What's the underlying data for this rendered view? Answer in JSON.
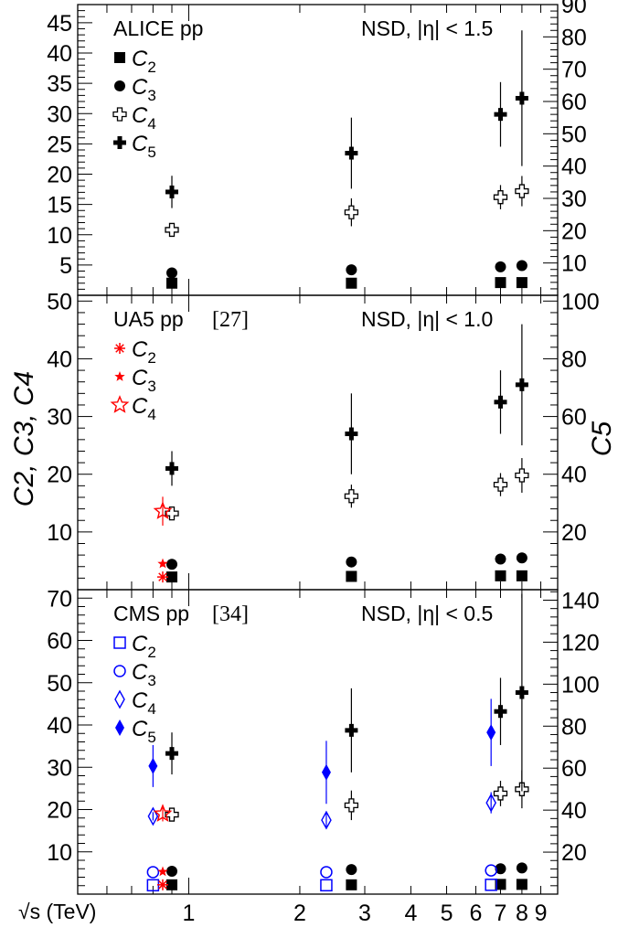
{
  "colors": {
    "alice": "#000000",
    "ua5": "#ff0000",
    "cms": "#0000ff"
  },
  "chart_data": {
    "type": "scatter",
    "xlabel": "√s (TeV)",
    "xscale": "log",
    "xlim": [
      0.5,
      10
    ],
    "xticks": [
      {
        "v": 1,
        "label": "1"
      },
      {
        "v": 2,
        "label": "2"
      },
      {
        "v": 3,
        "label": "3"
      },
      {
        "v": 4,
        "label": "4"
      },
      {
        "v": 5,
        "label": "5"
      },
      {
        "v": 6,
        "label": "6"
      },
      {
        "v": 7,
        "label": "7"
      },
      {
        "v": 8,
        "label": "8"
      },
      {
        "v": 9,
        "label": "9"
      }
    ],
    "left_ylabel": "C2, C3, C4",
    "right_ylabel": "C5",
    "panels": [
      {
        "experiment": "ALICE pp",
        "reference": "",
        "selection": "NSD, |η| < 1.5",
        "ylim_left": [
          0,
          48
        ],
        "ylim_right": [
          0,
          90
        ],
        "left_ticks": [
          5,
          10,
          15,
          20,
          25,
          30,
          35,
          40,
          45
        ],
        "right_ticks": [
          10,
          20,
          30,
          40,
          50,
          60,
          70,
          80,
          90
        ],
        "legend": [
          {
            "marker": "square-filled",
            "label": "C",
            "sub": "2"
          },
          {
            "marker": "circle-filled",
            "label": "C",
            "sub": "3"
          },
          {
            "marker": "cross-open",
            "label": "C",
            "sub": "4"
          },
          {
            "marker": "cross-filled",
            "label": "C",
            "sub": "5"
          }
        ],
        "series": [
          {
            "name": "C2",
            "marker": "square-filled",
            "color": "#000000",
            "axis": "left",
            "points": [
              {
                "x": 0.9,
                "y": 2.0,
                "err": 0
              },
              {
                "x": 2.76,
                "y": 2.0,
                "err": 0
              },
              {
                "x": 7,
                "y": 2.1,
                "err": 0
              },
              {
                "x": 8,
                "y": 2.1,
                "err": 0
              }
            ]
          },
          {
            "name": "C3",
            "marker": "circle-filled",
            "color": "#000000",
            "axis": "left",
            "points": [
              {
                "x": 0.9,
                "y": 3.7,
                "err": 0
              },
              {
                "x": 2.76,
                "y": 4.2,
                "err": 0
              },
              {
                "x": 7,
                "y": 4.7,
                "err": 0
              },
              {
                "x": 8,
                "y": 4.9,
                "err": 0
              }
            ]
          },
          {
            "name": "C4",
            "marker": "cross-open",
            "color": "#000000",
            "axis": "left",
            "points": [
              {
                "x": 0.9,
                "y": 10.8,
                "err": 1.0
              },
              {
                "x": 2.76,
                "y": 13.7,
                "err": 2.3
              },
              {
                "x": 7,
                "y": 16.2,
                "err": 2.0
              },
              {
                "x": 8,
                "y": 17.2,
                "err": 2.5
              }
            ]
          },
          {
            "name": "C5",
            "marker": "cross-filled",
            "color": "#000000",
            "axis": "right",
            "points": [
              {
                "x": 0.9,
                "y": 32,
                "err": 5
              },
              {
                "x": 2.76,
                "y": 44,
                "err": 11
              },
              {
                "x": 7,
                "y": 56,
                "err": 10
              },
              {
                "x": 8,
                "y": 61,
                "err": 21
              }
            ]
          }
        ]
      },
      {
        "experiment": "UA5 pp",
        "reference": "[27]",
        "selection": "NSD, |η| < 1.0",
        "ylim_left": [
          0,
          51
        ],
        "ylim_right": [
          0,
          102
        ],
        "left_ticks": [
          10,
          20,
          30,
          40,
          50
        ],
        "right_ticks": [
          20,
          40,
          60,
          80,
          100
        ],
        "legend": [
          {
            "marker": "asterisk",
            "label": "C",
            "sub": "2"
          },
          {
            "marker": "star-small",
            "label": "C",
            "sub": "3"
          },
          {
            "marker": "star-open",
            "label": "C",
            "sub": "4"
          }
        ],
        "series": [
          {
            "name": "C2",
            "marker": "square-filled",
            "color": "#000000",
            "axis": "left",
            "points": [
              {
                "x": 0.9,
                "y": 2.2,
                "err": 0
              },
              {
                "x": 2.76,
                "y": 2.3,
                "err": 0
              },
              {
                "x": 7,
                "y": 2.4,
                "err": 0
              },
              {
                "x": 8,
                "y": 2.4,
                "err": 0
              }
            ]
          },
          {
            "name": "C3",
            "marker": "circle-filled",
            "color": "#000000",
            "axis": "left",
            "points": [
              {
                "x": 0.9,
                "y": 4.4,
                "err": 0
              },
              {
                "x": 2.76,
                "y": 4.8,
                "err": 0
              },
              {
                "x": 7,
                "y": 5.3,
                "err": 0
              },
              {
                "x": 8,
                "y": 5.5,
                "err": 0
              }
            ]
          },
          {
            "name": "C4",
            "marker": "cross-open",
            "color": "#000000",
            "axis": "left",
            "points": [
              {
                "x": 0.9,
                "y": 13.2,
                "err": 0.9
              },
              {
                "x": 2.76,
                "y": 16.2,
                "err": 2.0
              },
              {
                "x": 7,
                "y": 18.2,
                "err": 2.0
              },
              {
                "x": 8,
                "y": 19.8,
                "err": 3.0
              }
            ]
          },
          {
            "name": "C5",
            "marker": "cross-filled",
            "color": "#000000",
            "axis": "right",
            "points": [
              {
                "x": 0.9,
                "y": 42,
                "err": 6
              },
              {
                "x": 2.76,
                "y": 54,
                "err": 14
              },
              {
                "x": 7,
                "y": 65,
                "err": 11
              },
              {
                "x": 8,
                "y": 71,
                "err": 21
              }
            ]
          },
          {
            "name": "C2 (UA5)",
            "marker": "asterisk",
            "color": "#ff0000",
            "axis": "left",
            "points": [
              {
                "x": 0.85,
                "y": 2.2,
                "err": 0.3
              }
            ]
          },
          {
            "name": "C3 (UA5)",
            "marker": "star-small",
            "color": "#ff0000",
            "axis": "left",
            "points": [
              {
                "x": 0.85,
                "y": 4.5,
                "err": 0.5
              }
            ]
          },
          {
            "name": "C4 (UA5)",
            "marker": "star-open",
            "color": "#ff0000",
            "axis": "left",
            "points": [
              {
                "x": 0.85,
                "y": 13.6,
                "err": 2.5
              }
            ]
          }
        ]
      },
      {
        "experiment": "CMS pp",
        "reference": "[34]",
        "selection": "NSD, |η| < 0.5",
        "ylim_left": [
          0,
          72
        ],
        "ylim_right": [
          0,
          145
        ],
        "left_ticks": [
          10,
          20,
          30,
          40,
          50,
          60,
          70
        ],
        "right_ticks": [
          20,
          40,
          60,
          80,
          100,
          120,
          140
        ],
        "legend": [
          {
            "marker": "square-open",
            "label": "C",
            "sub": "2"
          },
          {
            "marker": "circle-open",
            "label": "C",
            "sub": "3"
          },
          {
            "marker": "diamond-open",
            "label": "C",
            "sub": "4"
          },
          {
            "marker": "diamond-filled",
            "label": "C",
            "sub": "5"
          }
        ],
        "series": [
          {
            "name": "C2",
            "marker": "square-filled",
            "color": "#000000",
            "axis": "left",
            "points": [
              {
                "x": 0.9,
                "y": 2.2,
                "err": 0
              },
              {
                "x": 2.76,
                "y": 2.2,
                "err": 0
              },
              {
                "x": 7,
                "y": 2.3,
                "err": 0
              },
              {
                "x": 8,
                "y": 2.3,
                "err": 0
              }
            ]
          },
          {
            "name": "C3",
            "marker": "circle-filled",
            "color": "#000000",
            "axis": "left",
            "points": [
              {
                "x": 0.9,
                "y": 5.4,
                "err": 0
              },
              {
                "x": 2.76,
                "y": 5.8,
                "err": 0
              },
              {
                "x": 7,
                "y": 6.0,
                "err": 0
              },
              {
                "x": 8,
                "y": 6.2,
                "err": 0
              }
            ]
          },
          {
            "name": "C4",
            "marker": "cross-open",
            "color": "#000000",
            "axis": "left",
            "points": [
              {
                "x": 0.9,
                "y": 18.8,
                "err": 1.3
              },
              {
                "x": 2.76,
                "y": 21.0,
                "err": 3.5
              },
              {
                "x": 7,
                "y": 23.8,
                "err": 3.0
              },
              {
                "x": 8,
                "y": 24.8,
                "err": 4.5
              }
            ]
          },
          {
            "name": "C5",
            "marker": "cross-filled",
            "color": "#000000",
            "axis": "right",
            "points": [
              {
                "x": 0.9,
                "y": 67,
                "err": 10
              },
              {
                "x": 2.76,
                "y": 78,
                "err": 20
              },
              {
                "x": 7,
                "y": 87,
                "err": 16
              },
              {
                "x": 8,
                "y": 96,
                "err": 47
              }
            ]
          },
          {
            "name": "C2 (CMS)",
            "marker": "square-open",
            "color": "#0000ff",
            "axis": "left",
            "points": [
              {
                "x": 0.8,
                "y": 2.1,
                "err": 0
              },
              {
                "x": 2.36,
                "y": 2.1,
                "err": 0
              },
              {
                "x": 6.6,
                "y": 2.2,
                "err": 0
              }
            ]
          },
          {
            "name": "C3 (CMS)",
            "marker": "circle-open",
            "color": "#0000ff",
            "axis": "left",
            "points": [
              {
                "x": 0.8,
                "y": 5.2,
                "err": 0
              },
              {
                "x": 2.36,
                "y": 5.2,
                "err": 0
              },
              {
                "x": 6.6,
                "y": 5.6,
                "err": 0
              }
            ]
          },
          {
            "name": "C4 (CMS)",
            "marker": "diamond-open",
            "color": "#0000ff",
            "axis": "left",
            "points": [
              {
                "x": 0.8,
                "y": 18.4,
                "err": 1.0
              },
              {
                "x": 2.36,
                "y": 17.5,
                "err": 2.0
              },
              {
                "x": 6.6,
                "y": 21.6,
                "err": 2.5
              }
            ]
          },
          {
            "name": "C5 (CMS)",
            "marker": "diamond-filled",
            "color": "#0000ff",
            "axis": "right",
            "points": [
              {
                "x": 0.8,
                "y": 61,
                "err": 10
              },
              {
                "x": 2.36,
                "y": 58,
                "err": 15
              },
              {
                "x": 6.6,
                "y": 77,
                "err": 16
              }
            ]
          },
          {
            "name": "C2 (UA5)",
            "marker": "asterisk",
            "color": "#ff0000",
            "axis": "left",
            "points": [
              {
                "x": 0.85,
                "y": 2.2,
                "err": 0.3
              }
            ]
          },
          {
            "name": "C3 (UA5)",
            "marker": "star-small",
            "color": "#ff0000",
            "axis": "left",
            "points": [
              {
                "x": 0.85,
                "y": 5.3,
                "err": 0.5
              }
            ]
          },
          {
            "name": "C4 (UA5)",
            "marker": "star-open",
            "color": "#ff0000",
            "axis": "left",
            "points": [
              {
                "x": 0.85,
                "y": 19.0,
                "err": 1.8
              }
            ]
          }
        ]
      }
    ]
  }
}
